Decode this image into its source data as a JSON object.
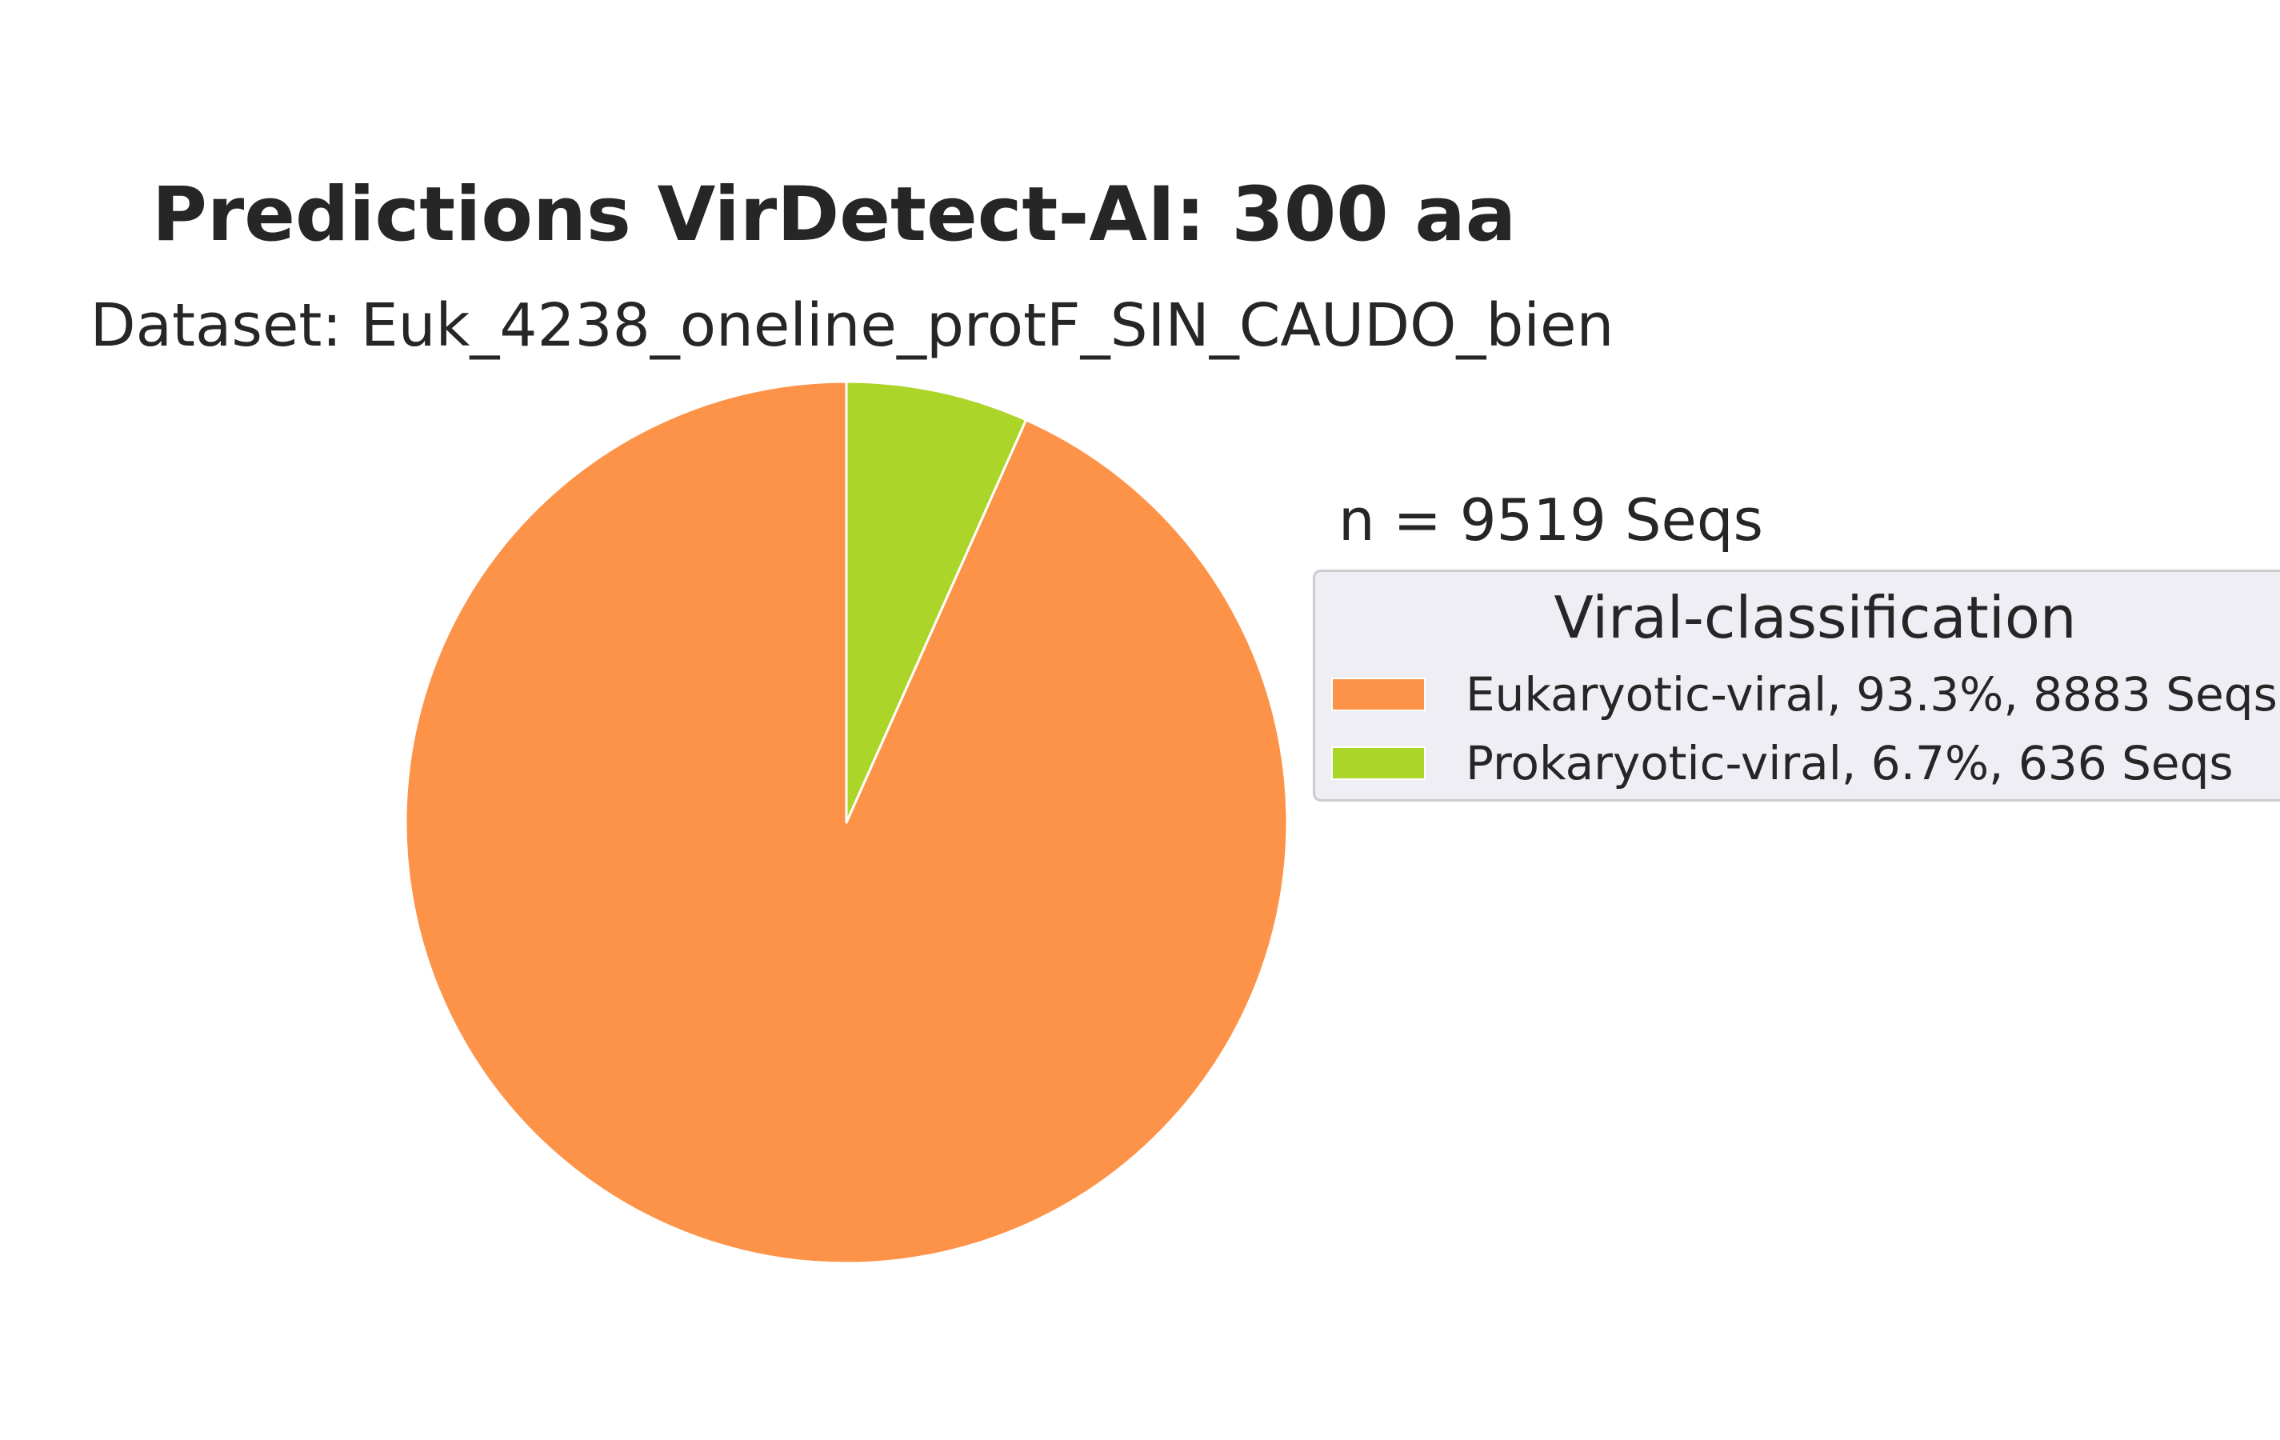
{
  "chart_data": {
    "type": "pie",
    "title": "Predictions VirDetect-AI: 300 aa",
    "subtitle": "Dataset: Euk_4238_oneline_protF_SIN_CAUDO_bien",
    "annotation": "n = 9519 Seqs",
    "total": 9519,
    "legend_title": "Viral-classification",
    "legend_position": "right",
    "start_angle_deg": 90,
    "direction": "counterclockwise",
    "series": [
      {
        "name": "Eukaryotic-viral",
        "value": 8883,
        "percent": 93.3,
        "color": "#fd9349",
        "legend_label": "Eukaryotic-viral, 93.3%, 8883 Seqs"
      },
      {
        "name": "Prokaryotic-viral",
        "value": 636,
        "percent": 6.7,
        "color": "#acd52a",
        "legend_label": "Prokaryotic-viral, 6.7%, 636 Seqs"
      }
    ]
  }
}
